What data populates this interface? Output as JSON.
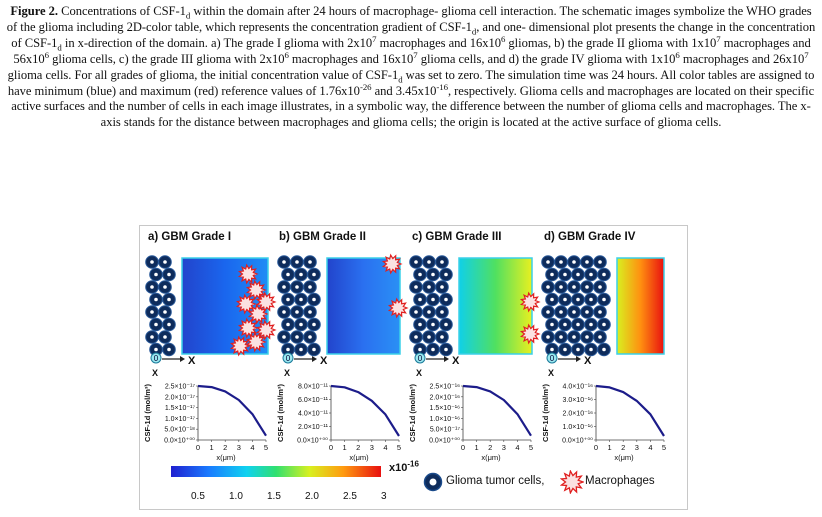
{
  "caption": {
    "label": "Figure 2.",
    "t1": " Concentrations of CSF-1",
    "t2": " within the domain after 24 hours of macrophage- glioma cell interaction. The schematic images symbolize the WHO grades of the glioma including 2D-color table, which represents the concentration gradient of CSF-1",
    "t3": ", and one- dimensional plot presents the change in the concentration of CSF-1",
    "t4": " in x-direction of the domain. a) The grade I glioma with 2x10",
    "t5": " macrophages and 16x10",
    "t6": " gliomas, b) the grade II glioma with 1x10",
    "t7": " macrophages and 56x10",
    "t8": " glioma cells, c) the grade III glioma with 2x10",
    "t9": " macrophages and 16x10",
    "t10": " glioma cells, and d) the grade IV glioma with 1x10",
    "t11": " macrophages and 26x10",
    "t12": " glioma cells. For all grades of glioma, the initial concentration value of CSF-1",
    "t13": " was set to zero. The simulation time was 24 hours. All color tables are assigned to have minimum (blue) and maximum (red) reference values of 1.76x10",
    "t14": " and 3.45x10",
    "t15": ", respectively. Glioma cells and macrophages are located on their specific active surfaces and the number of cells in each image illustrates, in a symbolic way, the difference between the number of glioma cells and macrophages. The x-axis stands for the distance between macrophages and glioma cells; the origin is located at the active surface of glioma cells.",
    "sub_d": "d",
    "sub_d_comma": "d",
    "exp7": "7",
    "exp6": "6",
    "exp_m26": "-26",
    "exp_m16": "-16"
  },
  "panels": [
    {
      "title": "a) GBM Grade I",
      "ylabel": "CSF-1d (mol/m³)",
      "yticks": [
        "2.5×10⁻¹⁷",
        "2.0×10⁻¹⁷",
        "1.5×10⁻¹⁷",
        "1.0×10⁻¹⁷",
        "5.0×10⁻¹⁸",
        "0.0×10⁺⁰⁰"
      ]
    },
    {
      "title": "b) GBM Grade II",
      "ylabel": "CSF-1d (mol/m³)",
      "yticks": [
        "8.0×10⁻¹¹",
        "6.0×10⁻¹¹",
        "4.0×10⁻¹¹",
        "2.0×10⁻¹¹",
        "0.0×10⁺⁰⁰"
      ]
    },
    {
      "title": "c) GBM Grade III",
      "ylabel": "CSF-1d (mol/m³)",
      "yticks": [
        "2.5×10⁻¹⁶",
        "2.0×10⁻¹⁶",
        "1.5×10⁻¹⁶",
        "1.0×10⁻¹⁶",
        "5.0×10⁻¹⁷",
        "0.0×10⁺⁰⁰"
      ]
    },
    {
      "title": "d) GBM Grade IV",
      "ylabel": "CSF-1d (mol/m³)",
      "yticks": [
        "4.0×10⁻¹⁶",
        "3.0×10⁻¹⁶",
        "2.0×10⁻¹⁶",
        "1.0×10⁻¹⁶",
        "0.0×10⁺⁰⁰"
      ]
    }
  ],
  "xaxis": {
    "ticks": [
      "0",
      "1",
      "2",
      "3",
      "4",
      "5"
    ],
    "label": "x(μm)",
    "origin": "0",
    "axis_letter": "X"
  },
  "chart_data": [
    {
      "type": "line",
      "title": "a) GBM Grade I",
      "x": [
        0,
        1,
        2,
        3,
        4,
        5
      ],
      "y": [
        2.5e-17,
        2.45e-17,
        2.25e-17,
        1.85e-17,
        1.2e-17,
        2e-18
      ],
      "xlim": [
        0,
        5
      ],
      "ylim": [
        0,
        2.5e-17
      ]
    },
    {
      "type": "line",
      "title": "b) GBM Grade II",
      "x": [
        0,
        1,
        2,
        3,
        4,
        5
      ],
      "y": [
        8e-11,
        7.8e-11,
        7.1e-11,
        5.8e-11,
        3.8e-11,
        6e-12
      ],
      "xlim": [
        0,
        5
      ],
      "ylim": [
        0,
        8e-11
      ]
    },
    {
      "type": "line",
      "title": "c) GBM Grade III",
      "x": [
        0,
        1,
        2,
        3,
        4,
        5
      ],
      "y": [
        2.5e-16,
        2.45e-16,
        2.25e-16,
        1.85e-16,
        1.2e-16,
        2e-17
      ],
      "xlim": [
        0,
        5
      ],
      "ylim": [
        0,
        2.5e-16
      ]
    },
    {
      "type": "line",
      "title": "d) GBM Grade IV",
      "x": [
        0,
        1,
        2,
        3,
        4,
        5
      ],
      "y": [
        4e-16,
        3.9e-16,
        3.55e-16,
        2.9e-16,
        1.9e-16,
        3e-17
      ],
      "xlim": [
        0,
        5
      ],
      "ylim": [
        0,
        4e-16
      ]
    }
  ],
  "colorbar": {
    "ticks": [
      "0.5",
      "1.0",
      "1.5",
      "2.0",
      "2.5",
      "3"
    ],
    "scale": "x10",
    "scale_exp": "-16"
  },
  "legend": {
    "glioma": "Glioma tumor cells,",
    "macrophage": "Macrophages"
  },
  "colors": {
    "glioma": "#0e2c5c",
    "macrophage": "#e02020",
    "curve": "#1c1c8a",
    "frame": "#3ad0e8"
  }
}
